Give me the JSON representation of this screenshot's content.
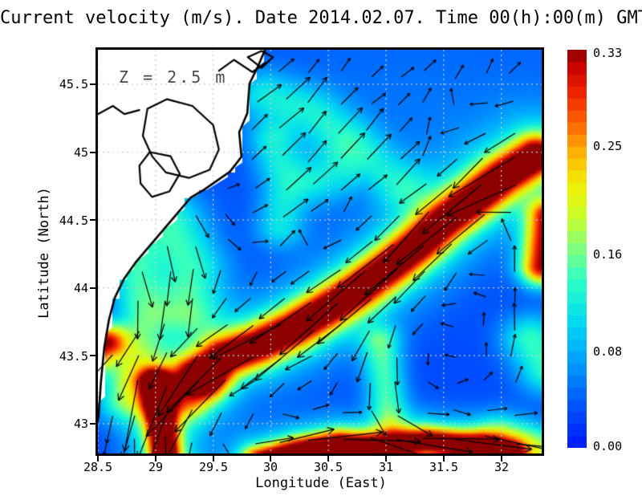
{
  "title": "Current velocity (m/s). Date 2014.02.07. Time 00(h):00(m) GMT",
  "chart_data": {
    "type": "heatmap",
    "subtype": "velocity-magnitude-with-quiver-arrows",
    "title": "Current velocity (m/s). Date 2014.02.07. Time 00(h):00(m) GMT",
    "annotation": "Z = 2.5 m",
    "xlabel": "Longitude (East)",
    "ylabel": "Latitude (North)",
    "units": "m/s",
    "xlim": [
      28.5,
      32.351
    ],
    "ylim": [
      42.78,
      45.754
    ],
    "xticks": [
      "28.5",
      "29",
      "29.5",
      "30",
      "30.5",
      "31",
      "31.5",
      "32"
    ],
    "xtick_values": [
      28.5,
      29,
      29.5,
      30,
      30.5,
      31,
      31.5,
      32
    ],
    "yticks": [
      "45.5",
      "45",
      "44.5",
      "44",
      "43.5",
      "43"
    ],
    "ytick_values": [
      45.5,
      45,
      44.5,
      44,
      43.5,
      43
    ],
    "grid_step": 0.5,
    "grid_color": "#cdcdcd",
    "colorbar": {
      "min": 0.0,
      "max": 0.33,
      "ticks": [
        "0.33",
        "0.25",
        "0.16",
        "0.08",
        "0.00"
      ],
      "tick_values": [
        0.33,
        0.25,
        0.16,
        0.08,
        0.0
      ]
    },
    "colormap": [
      [
        0.0,
        "#0019ff"
      ],
      [
        0.1,
        "#0050ff"
      ],
      [
        0.22,
        "#00a0ff"
      ],
      [
        0.32,
        "#00dcf0"
      ],
      [
        0.42,
        "#2cffc8"
      ],
      [
        0.5,
        "#80ff80"
      ],
      [
        0.58,
        "#c8ff2c"
      ],
      [
        0.66,
        "#f0f000"
      ],
      [
        0.74,
        "#ffb400"
      ],
      [
        0.82,
        "#ff6000"
      ],
      [
        0.9,
        "#eb1e00"
      ],
      [
        0.96,
        "#c80000"
      ],
      [
        1.0,
        "#8c0000"
      ]
    ],
    "background_speed": 0.03,
    "features": [
      {
        "name": "rim-current-jet",
        "path": [
          [
            32.3,
            44.97
          ],
          [
            32.02,
            44.82
          ],
          [
            31.76,
            44.65
          ],
          [
            31.52,
            44.5
          ],
          [
            31.28,
            44.32
          ],
          [
            31.04,
            44.16
          ],
          [
            30.78,
            44.0
          ],
          [
            30.5,
            43.85
          ],
          [
            30.2,
            43.7
          ],
          [
            29.9,
            43.58
          ],
          [
            29.6,
            43.49
          ],
          [
            29.4,
            43.36
          ]
        ],
        "amp": 0.3,
        "sigma": 0.105,
        "flow": "tangent"
      },
      {
        "name": "jet-halo",
        "path": [
          [
            32.3,
            44.97
          ],
          [
            32.02,
            44.82
          ],
          [
            31.76,
            44.65
          ],
          [
            31.52,
            44.5
          ],
          [
            31.28,
            44.32
          ],
          [
            31.04,
            44.16
          ],
          [
            30.78,
            44.0
          ],
          [
            30.5,
            43.85
          ],
          [
            30.2,
            43.7
          ],
          [
            29.9,
            43.58
          ],
          [
            29.6,
            43.49
          ],
          [
            29.4,
            43.36
          ]
        ],
        "amp": 0.085,
        "sigma": 0.24,
        "flow": "tangent"
      },
      {
        "name": "right-edge-blob",
        "path": [
          [
            32.36,
            44.16
          ],
          [
            32.42,
            44.52
          ]
        ],
        "amp": 0.3,
        "sigma": 0.1,
        "flow": "tangent"
      },
      {
        "name": "left-edge-blob",
        "path": [
          [
            28.4,
            43.48
          ],
          [
            28.56,
            43.6
          ]
        ],
        "amp": 0.27,
        "sigma": 0.09,
        "flow": 200
      },
      {
        "name": "southwest-stripe",
        "path": [
          [
            29.0,
            43.3
          ],
          [
            29.05,
            43.0
          ],
          [
            29.09,
            42.72
          ]
        ],
        "amp": 0.33,
        "sigma": 0.065,
        "flow": "tangent"
      },
      {
        "name": "southwest-stripe-halo",
        "path": [
          [
            29.0,
            43.3
          ],
          [
            29.05,
            43.0
          ],
          [
            29.09,
            42.72
          ]
        ],
        "amp": 0.11,
        "sigma": 0.16,
        "flow": "tangent"
      },
      {
        "name": "south-band",
        "path": [
          [
            29.9,
            42.72
          ],
          [
            30.25,
            42.8
          ],
          [
            30.6,
            42.85
          ],
          [
            30.95,
            42.82
          ],
          [
            31.35,
            42.87
          ],
          [
            31.8,
            42.83
          ],
          [
            32.05,
            42.76
          ]
        ],
        "amp": 0.29,
        "sigma": 0.07,
        "flow": "tangent"
      },
      {
        "name": "south-band-halo",
        "path": [
          [
            29.9,
            42.72
          ],
          [
            30.25,
            42.8
          ],
          [
            30.6,
            42.85
          ],
          [
            30.95,
            42.82
          ],
          [
            31.35,
            42.87
          ],
          [
            31.8,
            42.83
          ],
          [
            32.05,
            42.76
          ]
        ],
        "amp": 0.1,
        "sigma": 0.15,
        "flow": "tangent"
      },
      {
        "name": "west-coast-band",
        "path": [
          [
            28.72,
            44.42
          ],
          [
            28.82,
            44.1
          ],
          [
            28.88,
            43.8
          ],
          [
            28.8,
            43.45
          ],
          [
            28.72,
            43.18
          ]
        ],
        "amp": 0.1,
        "sigma": 0.12,
        "flow": "tangent"
      },
      {
        "name": "coastal-patch",
        "path": [
          [
            29.12,
            44.48
          ],
          [
            29.3,
            44.15
          ],
          [
            29.27,
            43.85
          ]
        ],
        "amp": 0.11,
        "sigma": 0.16,
        "flow": "tangent"
      },
      {
        "name": "north-wisp",
        "path": [
          [
            29.95,
            45.42
          ],
          [
            30.35,
            45.3
          ],
          [
            30.62,
            45.12
          ]
        ],
        "amp": 0.08,
        "sigma": 0.13,
        "flow": 45
      },
      {
        "name": "mid-wisp",
        "path": [
          [
            30.45,
            44.8
          ],
          [
            30.85,
            44.93
          ],
          [
            31.12,
            44.76
          ]
        ],
        "amp": 0.07,
        "sigma": 0.13,
        "flow": 45
      },
      {
        "name": "west-arc",
        "path": [
          [
            30.02,
            45.08
          ],
          [
            30.13,
            44.75
          ],
          [
            30.08,
            44.45
          ]
        ],
        "amp": 0.08,
        "sigma": 0.11,
        "flow": 45
      },
      {
        "name": "southeast-strip",
        "path": [
          [
            30.95,
            43.6
          ],
          [
            31.0,
            43.25
          ],
          [
            31.03,
            42.98
          ]
        ],
        "amp": 0.11,
        "sigma": 0.09,
        "flow": "tangent"
      },
      {
        "name": "east-patch",
        "path": [
          [
            32.26,
            43.62
          ],
          [
            32.4,
            43.4
          ]
        ],
        "amp": 0.11,
        "sigma": 0.13,
        "flow": 90
      },
      {
        "name": "southeast-corner-patch",
        "path": [
          [
            32.02,
            42.88
          ],
          [
            32.38,
            42.8
          ]
        ],
        "amp": 0.13,
        "sigma": 0.12,
        "flow": 0
      },
      {
        "name": "hook-curl",
        "path": [
          [
            29.44,
            43.3
          ],
          [
            29.3,
            43.16
          ],
          [
            29.16,
            43.18
          ]
        ],
        "amp": 0.11,
        "sigma": 0.1,
        "flow": "tangent"
      },
      {
        "name": "northeast-drift",
        "path": [
          [
            31.4,
            45.55
          ],
          [
            32.3,
            45.62
          ]
        ],
        "amp": 0.012,
        "sigma": 0.55,
        "flow": 60
      },
      {
        "name": "north-drift",
        "path": [
          [
            30.55,
            45.25
          ],
          [
            31.25,
            45.05
          ]
        ],
        "amp": 0.012,
        "sigma": 0.5,
        "flow": 40
      }
    ],
    "arrows": {
      "dlon": 0.25,
      "dlat": 0.207,
      "lon0": 28.6,
      "lat0": 42.88,
      "scale": 280,
      "base_len": 6,
      "max_len": 96
    },
    "coast": {
      "land_color": "#ffffff",
      "line_color": "#000000",
      "sea_edge": [
        [
          29.97,
          45.76
        ],
        [
          29.9,
          45.62
        ],
        [
          29.83,
          45.5
        ],
        [
          29.81,
          45.28
        ],
        [
          29.74,
          45.14
        ],
        [
          29.76,
          44.96
        ],
        [
          29.66,
          44.85
        ],
        [
          29.44,
          44.72
        ],
        [
          29.32,
          44.66
        ],
        [
          29.2,
          44.54
        ],
        [
          29.08,
          44.42
        ],
        [
          28.96,
          44.3
        ],
        [
          28.84,
          44.18
        ],
        [
          28.74,
          44.06
        ],
        [
          28.66,
          43.92
        ],
        [
          28.61,
          43.76
        ],
        [
          28.57,
          43.56
        ],
        [
          28.54,
          43.3
        ],
        [
          28.52,
          43.05
        ],
        [
          28.5,
          42.97
        ]
      ],
      "lagoons": [
        [
          [
            28.93,
            45.32
          ],
          [
            29.1,
            45.39
          ],
          [
            29.32,
            45.34
          ],
          [
            29.5,
            45.2
          ],
          [
            29.55,
            45.02
          ],
          [
            29.47,
            44.87
          ],
          [
            29.29,
            44.81
          ],
          [
            29.09,
            44.85
          ],
          [
            28.97,
            44.97
          ],
          [
            28.89,
            45.12
          ],
          [
            28.93,
            45.32
          ]
        ],
        [
          [
            28.95,
            45.0
          ],
          [
            29.13,
            44.97
          ],
          [
            29.21,
            44.84
          ],
          [
            29.12,
            44.71
          ],
          [
            28.97,
            44.67
          ],
          [
            28.87,
            44.77
          ],
          [
            28.86,
            44.9
          ],
          [
            28.95,
            45.0
          ]
        ]
      ],
      "rivers": [
        [
          [
            28.5,
            45.28
          ],
          [
            28.63,
            45.34
          ],
          [
            28.73,
            45.28
          ],
          [
            28.86,
            45.31
          ]
        ],
        [
          [
            29.55,
            45.6
          ],
          [
            29.68,
            45.68
          ],
          [
            29.84,
            45.59
          ],
          [
            29.96,
            45.66
          ]
        ],
        [
          [
            29.8,
            45.7
          ],
          [
            29.92,
            45.745
          ],
          [
            30.02,
            45.7
          ],
          [
            29.92,
            45.62
          ],
          [
            29.8,
            45.7
          ]
        ]
      ]
    }
  }
}
